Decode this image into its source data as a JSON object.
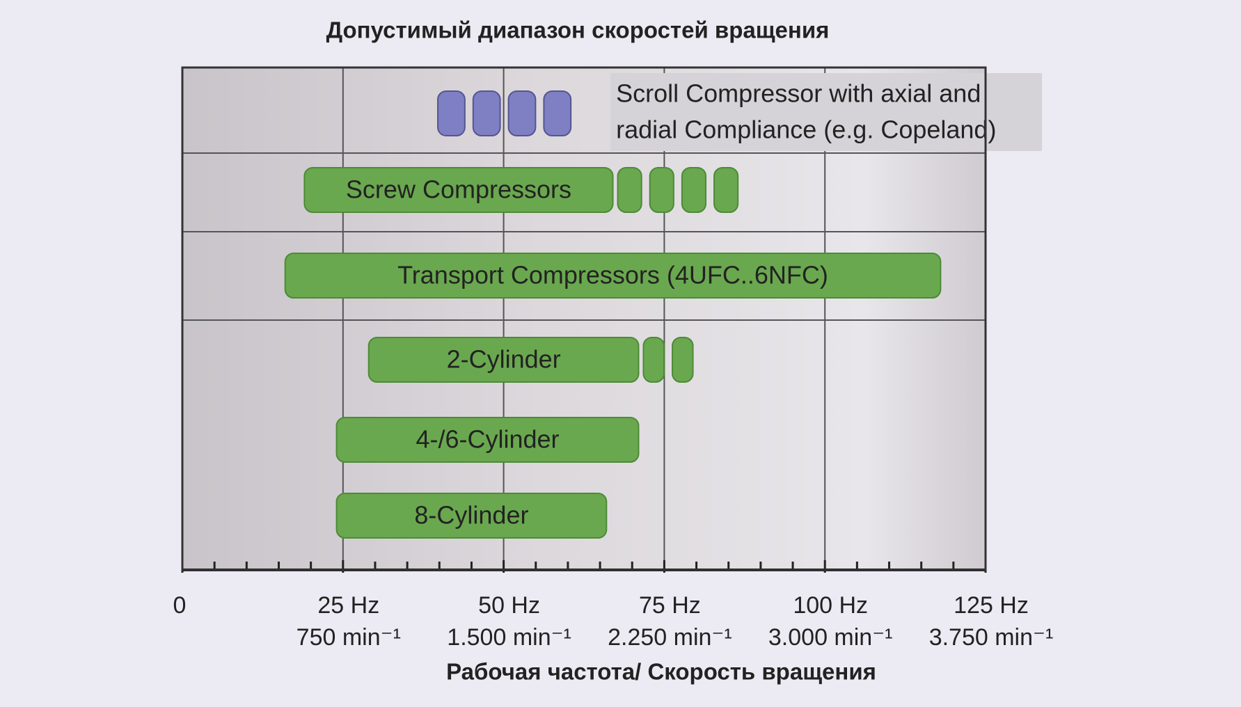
{
  "chart_data": {
    "type": "range_bar",
    "title": "Допустимый диапазон скоростей вращения",
    "xlabel": "Рабочая частота/ Скорость вращения",
    "xlim": [
      0,
      125
    ],
    "xticks": [
      0,
      {
        "value": 25,
        "label": "25 Hz"
      },
      {
        "value": 50,
        "label": "50 Hz"
      },
      {
        "value": 75,
        "label": "75 Hz"
      },
      {
        "value": 100,
        "label": "100 Hz"
      },
      {
        "value": 125,
        "label": "125 Hz"
      }
    ],
    "xtick_sublabels": [
      null,
      "750 min⁻¹",
      "1.500 min⁻¹",
      "2.250 min⁻¹",
      "3.000 min⁻¹",
      "3.750 min⁻¹"
    ],
    "xticks_minor": [
      5,
      10,
      15,
      20,
      30,
      35,
      40,
      45,
      55,
      60,
      65,
      70,
      80,
      85,
      90,
      95,
      105,
      110,
      115,
      120
    ],
    "grid": true,
    "bars": [
      {
        "label": [
          "Scroll Compressor with axial and",
          "radial Compliance (e.g. Copeland)"
        ],
        "color": "#7f7fc4",
        "solid": null,
        "dashed": [
          39,
          61
        ]
      },
      {
        "label": "Screw Compressors",
        "color": "#6aa84f",
        "solid": [
          19,
          67
        ],
        "dashed": [
          67,
          87
        ]
      },
      {
        "label": "Transport Compressors (4UFC..6NFC)",
        "color": "#6aa84f",
        "solid": [
          16,
          118
        ],
        "dashed": null
      },
      {
        "label": "2-Cylinder",
        "color": "#6aa84f",
        "solid": [
          29,
          71
        ],
        "dashed": [
          71,
          80
        ]
      },
      {
        "label": "4-/6-Cylinder",
        "color": "#6aa84f",
        "solid": [
          24,
          71
        ],
        "dashed": null
      },
      {
        "label": "8-Cylinder",
        "color": "#6aa84f",
        "solid": [
          24,
          66
        ],
        "dashed": null
      }
    ]
  }
}
